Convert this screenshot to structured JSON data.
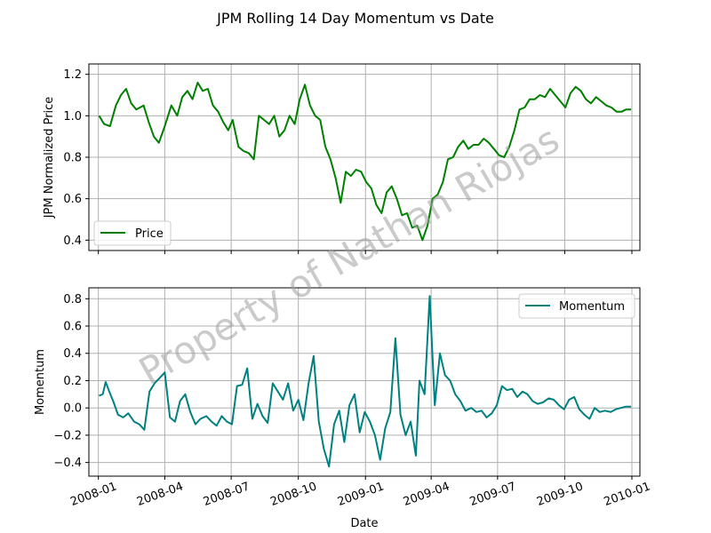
{
  "figure_title": "JPM Rolling 14 Day Momentum vs Date",
  "watermark": "Property of Nathan Riojas",
  "colors": {
    "price": "#008000",
    "momentum": "#008080",
    "grid": "#b0b0b0"
  },
  "chart_data": [
    {
      "type": "line",
      "ylabel": "JPM Normalized Price",
      "xlabel": "",
      "ylim": [
        0.35,
        1.25
      ],
      "xlim": [
        "2007-12-19",
        "2010-01-12"
      ],
      "yticks": [
        "0.4",
        "0.6",
        "0.8",
        "1.0",
        "1.2"
      ],
      "xticks": [],
      "grid": true,
      "legend_position": "lower-left",
      "series": [
        {
          "name": "Price",
          "x": [
            "2008-01-02",
            "2008-01-09",
            "2008-01-17",
            "2008-01-25",
            "2008-02-01",
            "2008-02-08",
            "2008-02-15",
            "2008-02-22",
            "2008-03-03",
            "2008-03-10",
            "2008-03-17",
            "2008-03-24",
            "2008-04-01",
            "2008-04-10",
            "2008-04-18",
            "2008-04-25",
            "2008-05-02",
            "2008-05-09",
            "2008-05-16",
            "2008-05-23",
            "2008-05-30",
            "2008-06-06",
            "2008-06-13",
            "2008-06-20",
            "2008-06-27",
            "2008-07-03",
            "2008-07-11",
            "2008-07-18",
            "2008-07-25",
            "2008-08-01",
            "2008-08-08",
            "2008-08-15",
            "2008-08-22",
            "2008-08-29",
            "2008-09-05",
            "2008-09-12",
            "2008-09-19",
            "2008-09-26",
            "2008-10-03",
            "2008-10-10",
            "2008-10-17",
            "2008-10-24",
            "2008-10-31",
            "2008-11-07",
            "2008-11-14",
            "2008-11-21",
            "2008-11-28",
            "2008-12-05",
            "2008-12-12",
            "2008-12-19",
            "2008-12-26",
            "2009-01-02",
            "2009-01-09",
            "2009-01-16",
            "2009-01-23",
            "2009-01-30",
            "2009-02-06",
            "2009-02-13",
            "2009-02-20",
            "2009-02-27",
            "2009-03-06",
            "2009-03-13",
            "2009-03-20",
            "2009-03-27",
            "2009-04-03",
            "2009-04-10",
            "2009-04-17",
            "2009-04-24",
            "2009-05-01",
            "2009-05-08",
            "2009-05-15",
            "2009-05-22",
            "2009-05-29",
            "2009-06-05",
            "2009-06-12",
            "2009-06-19",
            "2009-06-26",
            "2009-07-03",
            "2009-07-10",
            "2009-07-17",
            "2009-07-24",
            "2009-07-31",
            "2009-08-07",
            "2009-08-14",
            "2009-08-21",
            "2009-08-28",
            "2009-09-04",
            "2009-09-11",
            "2009-09-18",
            "2009-09-25",
            "2009-10-02",
            "2009-10-09",
            "2009-10-16",
            "2009-10-23",
            "2009-10-30",
            "2009-11-06",
            "2009-11-13",
            "2009-11-20",
            "2009-11-27",
            "2009-12-04",
            "2009-12-11",
            "2009-12-18",
            "2009-12-24",
            "2009-12-31"
          ],
          "values": [
            1.0,
            0.96,
            0.95,
            1.05,
            1.1,
            1.13,
            1.06,
            1.03,
            1.05,
            0.97,
            0.9,
            0.87,
            0.95,
            1.05,
            1.0,
            1.09,
            1.12,
            1.08,
            1.16,
            1.12,
            1.13,
            1.05,
            1.02,
            0.97,
            0.93,
            0.98,
            0.85,
            0.83,
            0.82,
            0.79,
            1.0,
            0.98,
            0.96,
            1.0,
            0.9,
            0.93,
            1.0,
            0.96,
            1.08,
            1.15,
            1.05,
            1.0,
            0.98,
            0.85,
            0.79,
            0.7,
            0.58,
            0.73,
            0.71,
            0.74,
            0.73,
            0.68,
            0.65,
            0.57,
            0.53,
            0.63,
            0.66,
            0.6,
            0.52,
            0.53,
            0.46,
            0.47,
            0.4,
            0.47,
            0.6,
            0.62,
            0.68,
            0.79,
            0.8,
            0.85,
            0.88,
            0.84,
            0.86,
            0.86,
            0.89,
            0.87,
            0.84,
            0.81,
            0.8,
            0.85,
            0.93,
            1.03,
            1.04,
            1.08,
            1.08,
            1.1,
            1.09,
            1.13,
            1.1,
            1.07,
            1.04,
            1.11,
            1.14,
            1.12,
            1.08,
            1.06,
            1.09,
            1.07,
            1.05,
            1.04,
            1.02,
            1.02,
            1.03,
            1.03
          ]
        }
      ]
    },
    {
      "type": "line",
      "ylabel": "Momentum",
      "xlabel": "Date",
      "ylim": [
        -0.5,
        0.88
      ],
      "xlim": [
        "2007-12-19",
        "2010-01-12"
      ],
      "yticks": [
        "−0.4",
        "−0.2",
        "0.0",
        "0.2",
        "0.4",
        "0.6",
        "0.8"
      ],
      "xticks": [
        "2008-01",
        "2008-04",
        "2008-07",
        "2008-10",
        "2009-01",
        "2009-04",
        "2009-07",
        "2009-10",
        "2010-01"
      ],
      "grid": true,
      "legend_position": "upper-right",
      "series": [
        {
          "name": "Momentum",
          "x": [
            "2008-01-02",
            "2008-01-07",
            "2008-01-11",
            "2008-01-16",
            "2008-01-22",
            "2008-01-28",
            "2008-02-04",
            "2008-02-11",
            "2008-02-19",
            "2008-02-26",
            "2008-03-04",
            "2008-03-11",
            "2008-03-18",
            "2008-03-25",
            "2008-04-01",
            "2008-04-08",
            "2008-04-15",
            "2008-04-22",
            "2008-04-29",
            "2008-05-06",
            "2008-05-13",
            "2008-05-20",
            "2008-05-28",
            "2008-06-04",
            "2008-06-11",
            "2008-06-18",
            "2008-06-25",
            "2008-07-02",
            "2008-07-09",
            "2008-07-16",
            "2008-07-23",
            "2008-07-30",
            "2008-08-06",
            "2008-08-13",
            "2008-08-20",
            "2008-08-27",
            "2008-09-03",
            "2008-09-10",
            "2008-09-17",
            "2008-09-24",
            "2008-10-01",
            "2008-10-08",
            "2008-10-15",
            "2008-10-22",
            "2008-10-29",
            "2008-11-05",
            "2008-11-12",
            "2008-11-19",
            "2008-11-26",
            "2008-12-03",
            "2008-12-10",
            "2008-12-17",
            "2008-12-24",
            "2008-12-31",
            "2009-01-07",
            "2009-01-14",
            "2009-01-21",
            "2009-01-28",
            "2009-02-04",
            "2009-02-11",
            "2009-02-18",
            "2009-02-25",
            "2009-03-04",
            "2009-03-11",
            "2009-03-16",
            "2009-03-23",
            "2009-03-30",
            "2009-04-06",
            "2009-04-13",
            "2009-04-20",
            "2009-04-27",
            "2009-05-04",
            "2009-05-11",
            "2009-05-18",
            "2009-05-26",
            "2009-06-02",
            "2009-06-09",
            "2009-06-16",
            "2009-06-23",
            "2009-06-30",
            "2009-07-07",
            "2009-07-14",
            "2009-07-21",
            "2009-07-28",
            "2009-08-04",
            "2009-08-11",
            "2009-08-18",
            "2009-08-25",
            "2009-09-01",
            "2009-09-09",
            "2009-09-16",
            "2009-09-23",
            "2009-09-30",
            "2009-10-07",
            "2009-10-14",
            "2009-10-21",
            "2009-10-28",
            "2009-11-04",
            "2009-11-11",
            "2009-11-18",
            "2009-11-25",
            "2009-12-03",
            "2009-12-10",
            "2009-12-17",
            "2009-12-24",
            "2009-12-31"
          ],
          "values": [
            0.09,
            0.1,
            0.19,
            0.12,
            0.04,
            -0.05,
            -0.07,
            -0.04,
            -0.1,
            -0.12,
            -0.16,
            0.12,
            0.18,
            0.22,
            0.26,
            -0.07,
            -0.1,
            0.05,
            0.1,
            -0.03,
            -0.12,
            -0.08,
            -0.06,
            -0.1,
            -0.13,
            -0.06,
            -0.1,
            -0.12,
            0.16,
            0.17,
            0.29,
            -0.08,
            0.03,
            -0.06,
            -0.11,
            0.18,
            0.12,
            0.06,
            0.18,
            -0.02,
            0.06,
            -0.09,
            0.18,
            0.38,
            -0.1,
            -0.3,
            -0.43,
            -0.12,
            -0.02,
            -0.25,
            0.02,
            0.1,
            -0.18,
            -0.03,
            -0.1,
            -0.2,
            -0.38,
            -0.15,
            -0.03,
            0.51,
            -0.05,
            -0.2,
            -0.1,
            -0.35,
            0.2,
            0.1,
            0.82,
            0.02,
            0.4,
            0.24,
            0.2,
            0.1,
            0.05,
            -0.02,
            0.0,
            -0.03,
            -0.02,
            -0.07,
            -0.04,
            0.02,
            0.16,
            0.13,
            0.14,
            0.08,
            0.12,
            0.1,
            0.05,
            0.03,
            0.04,
            0.07,
            0.06,
            0.02,
            -0.01,
            0.06,
            0.08,
            -0.01,
            -0.05,
            -0.08,
            0.0,
            -0.03,
            -0.02,
            -0.03,
            -0.01,
            0.0,
            0.01,
            0.01
          ]
        }
      ]
    }
  ]
}
